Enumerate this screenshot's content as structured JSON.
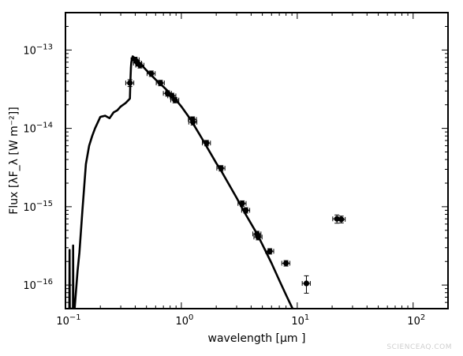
{
  "chart_data": {
    "type": "scatter",
    "xlabel": "wavelength [μm ]",
    "ylabel": "Flux [λF_λ [W m⁻²]]",
    "xscale": "log",
    "yscale": "log",
    "xlim": [
      0.1,
      200
    ],
    "ylim": [
      5e-17,
      3e-13
    ],
    "x_ticks": [
      {
        "value": 0.1,
        "base": "10",
        "exp": "−1"
      },
      {
        "value": 1,
        "base": "10",
        "exp": "0"
      },
      {
        "value": 10,
        "base": "10",
        "exp": "1"
      },
      {
        "value": 100,
        "base": "10",
        "exp": "2"
      }
    ],
    "y_ticks": [
      {
        "value": 1e-16,
        "base": "10",
        "exp": "−16"
      },
      {
        "value": 1e-15,
        "base": "10",
        "exp": "−15"
      },
      {
        "value": 1e-14,
        "base": "10",
        "exp": "−14"
      },
      {
        "value": 1e-13,
        "base": "10",
        "exp": "−13"
      }
    ],
    "grid": false,
    "series": [
      {
        "kind": "line",
        "color": "#000000",
        "x": [
          0.107,
          0.1075,
          0.108,
          0.1085,
          0.109,
          0.112,
          0.116,
          0.1165,
          0.117,
          0.1175,
          0.118,
          0.12,
          0.123,
          0.127,
          0.132,
          0.14,
          0.15,
          0.16,
          0.17,
          0.18,
          0.2,
          0.22,
          0.24,
          0.26,
          0.28,
          0.3,
          0.33,
          0.36,
          0.363,
          0.367,
          0.37,
          0.375,
          0.38,
          0.4,
          0.45,
          0.5,
          0.6,
          0.7,
          0.8,
          0.9,
          1.0,
          1.2,
          1.5,
          2.0,
          2.2,
          3.0,
          3.5,
          4.5,
          5.0,
          6.0,
          7.0,
          8.0,
          9.0,
          9.5
        ],
        "y": [
          5e-17,
          2.5e-17,
          5e-17,
          2.8e-16,
          5e-17,
          5e-17,
          5e-17,
          3.2e-16,
          5e-17,
          5e-17,
          5e-17,
          5e-17,
          8e-17,
          1.5e-16,
          2.6e-16,
          9e-16,
          3.5e-15,
          6e-15,
          8e-15,
          1e-14,
          1.4e-14,
          1.45e-14,
          1.35e-14,
          1.6e-14,
          1.7e-14,
          1.9e-14,
          2.1e-14,
          2.4e-14,
          4e-14,
          6e-14,
          7e-14,
          7.5e-14,
          8.3e-14,
          7.8e-14,
          6.5e-14,
          5.5e-14,
          4.2e-14,
          3.4e-14,
          2.8e-14,
          2.3e-14,
          1.9e-14,
          1.3e-14,
          7.5e-15,
          3.6e-15,
          2.9e-15,
          1.3e-15,
          8.5e-16,
          4.5e-16,
          3.3e-16,
          1.9e-16,
          1.15e-16,
          7.5e-17,
          5.2e-17,
          4.5e-17
        ]
      },
      {
        "kind": "points",
        "color": "#000000",
        "x": [
          0.36,
          0.4,
          0.42,
          0.44,
          0.55,
          0.66,
          0.76,
          0.83,
          0.88,
          1.25,
          1.26,
          1.65,
          2.2,
          3.35,
          3.6,
          4.5,
          4.6,
          5.8,
          8.0,
          12.0,
          22.0,
          24.0
        ],
        "y": [
          3.8e-14,
          7.5e-14,
          6.8e-14,
          6.4e-14,
          5e-14,
          3.8e-14,
          2.8e-14,
          2.6e-14,
          2.3e-14,
          1.3e-14,
          1.2e-14,
          6.5e-15,
          3.1e-15,
          1.1e-15,
          9e-16,
          4.5e-16,
          4.1e-16,
          2.7e-16,
          1.9e-16,
          1.05e-16,
          7e-16,
          6.9e-16
        ],
        "xerr_frac": [
          0.08,
          0.08,
          0.08,
          0.08,
          0.08,
          0.08,
          0.08,
          0.08,
          0.08,
          0.08,
          0.08,
          0.08,
          0.08,
          0.08,
          0.08,
          0.08,
          0.08,
          0.08,
          0.08,
          0.08,
          0.08,
          0.08
        ],
        "yerr_frac": [
          0.1,
          0.08,
          0.08,
          0.08,
          0.08,
          0.08,
          0.08,
          0.08,
          0.08,
          0.08,
          0.08,
          0.08,
          0.08,
          0.08,
          0.08,
          0.08,
          0.08,
          0.08,
          0.08,
          0.25,
          0.12,
          0.1
        ]
      }
    ]
  },
  "watermark": "SCIENCEAQ.COM"
}
